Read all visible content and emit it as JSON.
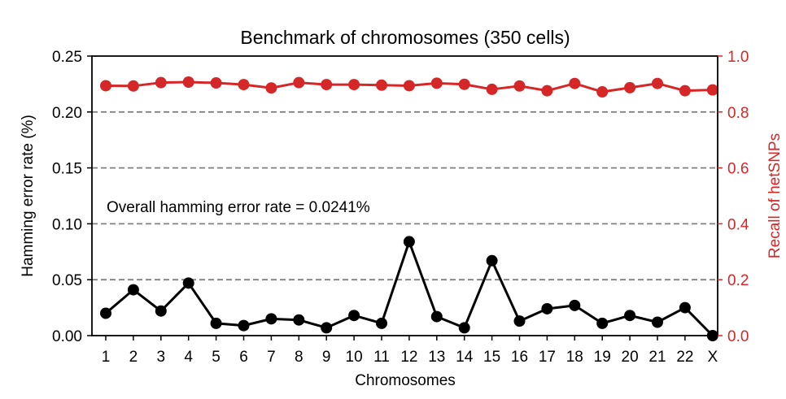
{
  "chart_data": {
    "type": "line",
    "title": "Benchmark of chromosomes (350 cells)",
    "xlabel": "Chromosomes",
    "ylabel_left": "Hamming error rate (%)",
    "ylabel_right": "Recall of hetSNPs",
    "categories": [
      "1",
      "2",
      "3",
      "4",
      "5",
      "6",
      "7",
      "8",
      "9",
      "10",
      "11",
      "12",
      "13",
      "14",
      "15",
      "16",
      "17",
      "18",
      "19",
      "20",
      "21",
      "22",
      "X"
    ],
    "ylim_left": [
      0,
      0.25
    ],
    "yticks_left": [
      "0.00",
      "0.05",
      "0.10",
      "0.15",
      "0.20",
      "0.25"
    ],
    "ylim_right": [
      0,
      1.0
    ],
    "yticks_right": [
      "0.0",
      "0.2",
      "0.4",
      "0.6",
      "0.8",
      "1.0"
    ],
    "gridlines_left": [
      0.05,
      0.1,
      0.15,
      0.2
    ],
    "annotation": "Overall hamming error rate = 0.0241%",
    "colors": {
      "left_axis": "#000000",
      "right_axis": "#d62728",
      "grid": "#808080"
    },
    "series": [
      {
        "name": "Hamming error rate (%)",
        "axis": "left",
        "color": "#000000",
        "values": [
          0.02,
          0.041,
          0.022,
          0.047,
          0.011,
          0.009,
          0.015,
          0.014,
          0.007,
          0.018,
          0.011,
          0.084,
          0.017,
          0.007,
          0.067,
          0.013,
          0.024,
          0.027,
          0.011,
          0.018,
          0.012,
          0.025,
          0.0
        ]
      },
      {
        "name": "Recall of hetSNPs",
        "axis": "right",
        "color": "#d62728",
        "values": [
          0.894,
          0.893,
          0.905,
          0.907,
          0.904,
          0.898,
          0.886,
          0.905,
          0.898,
          0.898,
          0.896,
          0.894,
          0.903,
          0.899,
          0.881,
          0.893,
          0.876,
          0.902,
          0.872,
          0.887,
          0.902,
          0.876,
          0.879
        ]
      }
    ]
  }
}
